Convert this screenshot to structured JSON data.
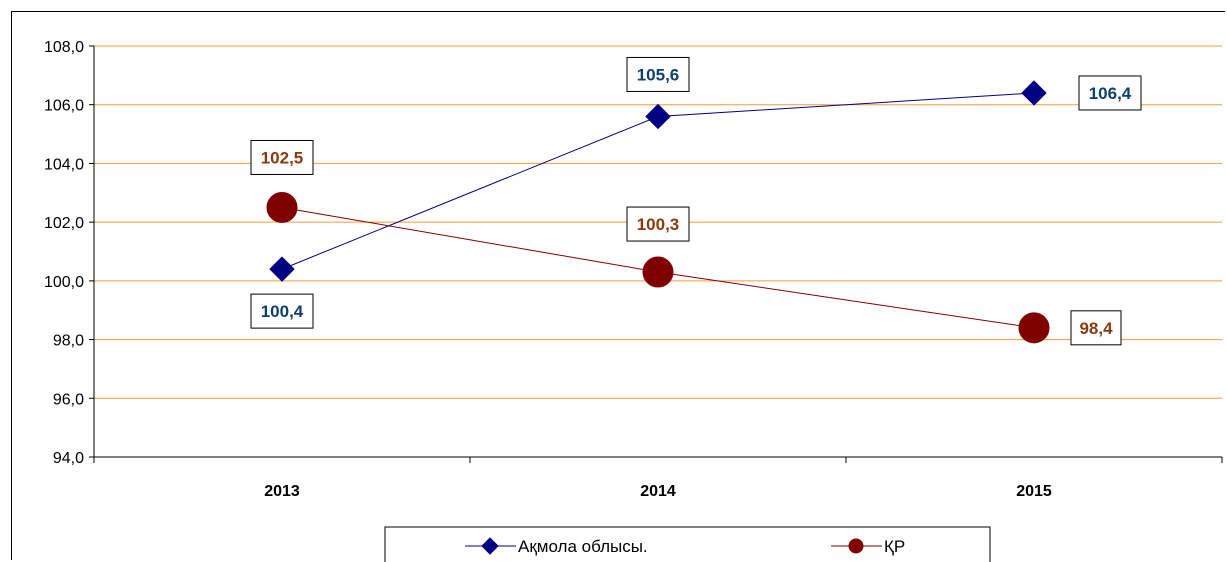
{
  "chart_data": {
    "type": "line",
    "title": "",
    "xlabel": "",
    "ylabel": "",
    "categories": [
      "2013",
      "2014",
      "2015"
    ],
    "ylim": [
      94.0,
      108.0
    ],
    "y_ticks": [
      "94,0",
      "96,0",
      "98,0",
      "100,0",
      "102,0",
      "104,0",
      "106,0",
      "108,0"
    ],
    "grid": true,
    "legend_position": "bottom",
    "series": [
      {
        "name": "Ақмола облысы.",
        "values": [
          100.4,
          105.6,
          106.4
        ],
        "labels": [
          "100,4",
          "105,6",
          "106,4"
        ],
        "color": "#000080",
        "label_color": "#0f3f6d",
        "marker": "diamond"
      },
      {
        "name": "ҚР",
        "values": [
          102.5,
          100.3,
          98.4
        ],
        "labels": [
          "102,5",
          "100,3",
          "98,4"
        ],
        "color": "#800000",
        "label_color": "#8b3a0e",
        "marker": "circle"
      }
    ],
    "grid_color": "#ff9933"
  }
}
